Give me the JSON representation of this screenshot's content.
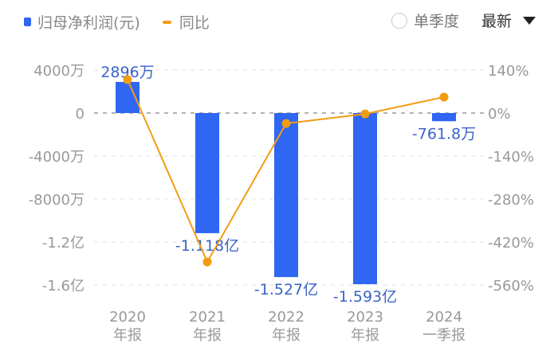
{
  "legend": {
    "bar_label": "归母净利润(元)",
    "line_label": "同比"
  },
  "controls": {
    "single_quarter_label": "单季度",
    "sort_label": "最新"
  },
  "colors": {
    "bar": "#2f66f2",
    "line": "#f39c12",
    "bar_label": "#3a63c9",
    "axis_text": "#999999"
  },
  "chart_data": {
    "type": "bar",
    "title": "",
    "categories": [
      "2020\n年报",
      "2021\n年报",
      "2022\n年报",
      "2023\n年报",
      "2024\n一季报"
    ],
    "category_lines": [
      [
        "2020",
        "年报"
      ],
      [
        "2021",
        "年报"
      ],
      [
        "2022",
        "年报"
      ],
      [
        "2023",
        "年报"
      ],
      [
        "2024",
        "一季报"
      ]
    ],
    "series": [
      {
        "name": "归母净利润(元)",
        "type": "bar",
        "axis": "left",
        "values": [
          28960000,
          -111800000,
          -152700000,
          -159300000,
          -7618000
        ],
        "labels": [
          "2896万",
          "-1.118亿",
          "-1.527亿",
          "-1.593亿",
          "-761.8万"
        ]
      },
      {
        "name": "同比",
        "type": "line",
        "axis": "right",
        "values": [
          109,
          -485,
          -34,
          -3,
          52
        ]
      }
    ],
    "left_axis": {
      "ticks": [
        "4000万",
        "0",
        "-4000万",
        "-8000万",
        "-1.2亿",
        "-1.6亿"
      ],
      "tick_values": [
        40000000,
        0,
        -40000000,
        -80000000,
        -120000000,
        -160000000
      ]
    },
    "right_axis": {
      "ticks": [
        "140%",
        "0%",
        "-140%",
        "-280%",
        "-420%",
        "-560%"
      ],
      "tick_values": [
        140,
        0,
        -140,
        -280,
        -420,
        -560
      ]
    },
    "ylim_left": [
      -160000000,
      40000000
    ],
    "ylim_right": [
      -560,
      140
    ],
    "grid": true,
    "legend_position": "top-left"
  }
}
